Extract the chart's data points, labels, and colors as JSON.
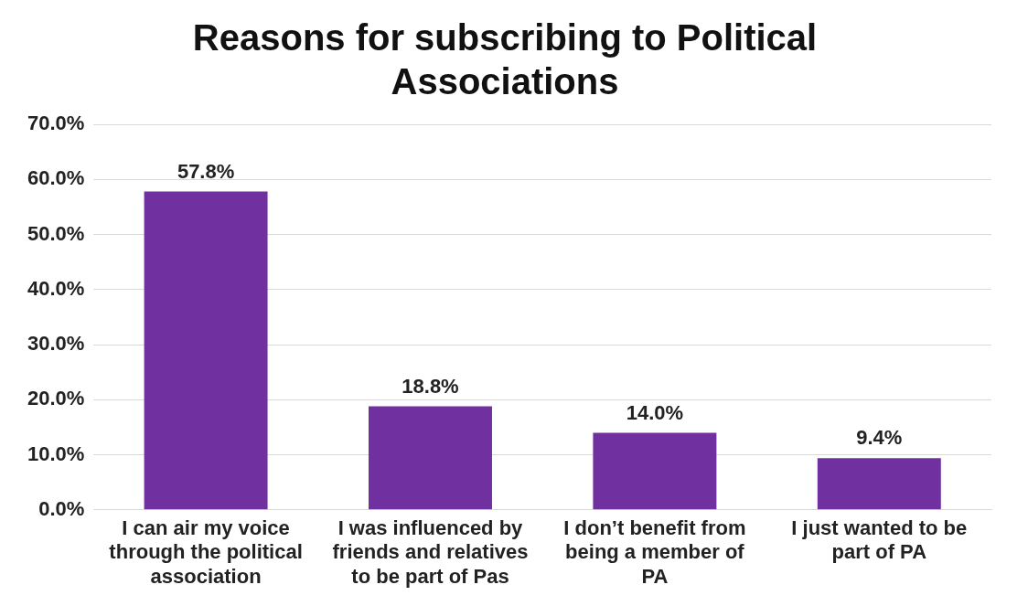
{
  "chart_data": {
    "type": "bar",
    "title": "Reasons for subscribing to Political Associations",
    "categories": [
      "I can air my voice through the political association",
      "I was influenced by friends and relatives to be part of Pas",
      "I don’t benefit from being a member of PA",
      "I just wanted to be part of PA"
    ],
    "values": [
      57.8,
      18.8,
      14.0,
      9.4
    ],
    "color": "#7030a0",
    "value_labels": [
      "57.8%",
      "18.8%",
      "14.0%",
      "9.4%"
    ],
    "ylim": [
      0,
      70
    ],
    "yticks": [
      {
        "value": 0,
        "label": "0.0%"
      },
      {
        "value": 10,
        "label": "10.0%"
      },
      {
        "value": 20,
        "label": "20.0%"
      },
      {
        "value": 30,
        "label": "30.0%"
      },
      {
        "value": 40,
        "label": "40.0%"
      },
      {
        "value": 50,
        "label": "50.0%"
      },
      {
        "value": 60,
        "label": "60.0%"
      },
      {
        "value": 70,
        "label": "70.0%"
      }
    ],
    "grid": "y",
    "legend": false
  }
}
